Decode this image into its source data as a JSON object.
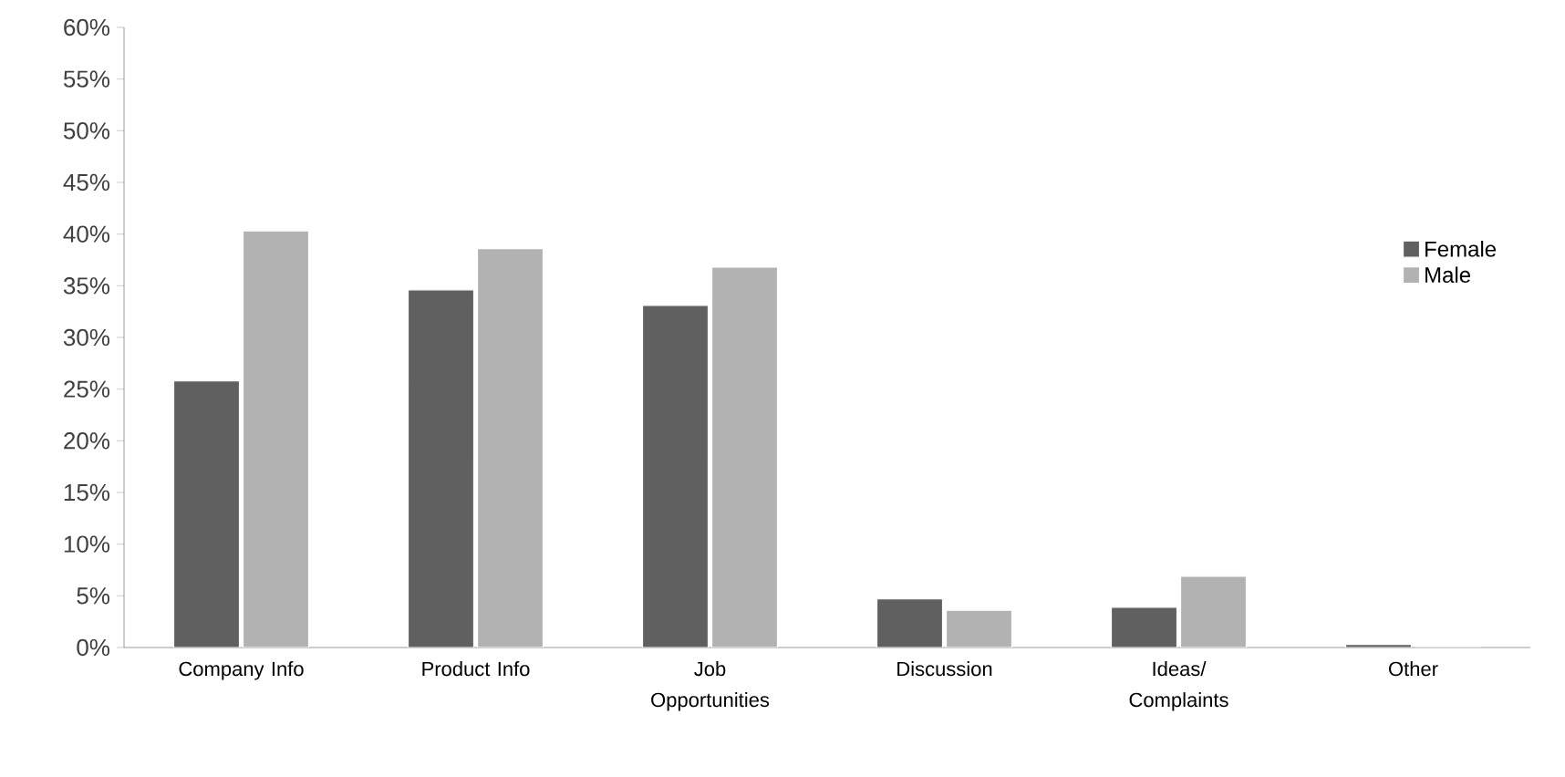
{
  "chart_data": {
    "type": "bar",
    "categories": [
      "Company Info",
      "Product Info",
      "Job Opportunities",
      "Discussion",
      "Ideas/ Complaints",
      "Other"
    ],
    "series": [
      {
        "name": "Female",
        "color": "#606060",
        "values": [
          25.8,
          34.6,
          33.1,
          4.7,
          3.9,
          0.3
        ]
      },
      {
        "name": "Male",
        "color": "#b2b2b2",
        "values": [
          40.3,
          38.6,
          36.8,
          3.6,
          6.9,
          0
        ]
      }
    ],
    "ylim": [
      0,
      60
    ],
    "yticks": [
      {
        "value": 0,
        "label": "0%"
      },
      {
        "value": 5,
        "label": "5%"
      },
      {
        "value": 10,
        "label": "10%"
      },
      {
        "value": 15,
        "label": "15%"
      },
      {
        "value": 20,
        "label": "20%"
      },
      {
        "value": 25,
        "label": "25%"
      },
      {
        "value": 30,
        "label": "30%"
      },
      {
        "value": 35,
        "label": "35%"
      },
      {
        "value": 40,
        "label": "40%"
      },
      {
        "value": 45,
        "label": "45%"
      },
      {
        "value": 50,
        "label": "50%"
      },
      {
        "value": 55,
        "label": "55%"
      },
      {
        "value": 60,
        "label": "60%"
      }
    ],
    "grid": false,
    "legend": "right"
  }
}
